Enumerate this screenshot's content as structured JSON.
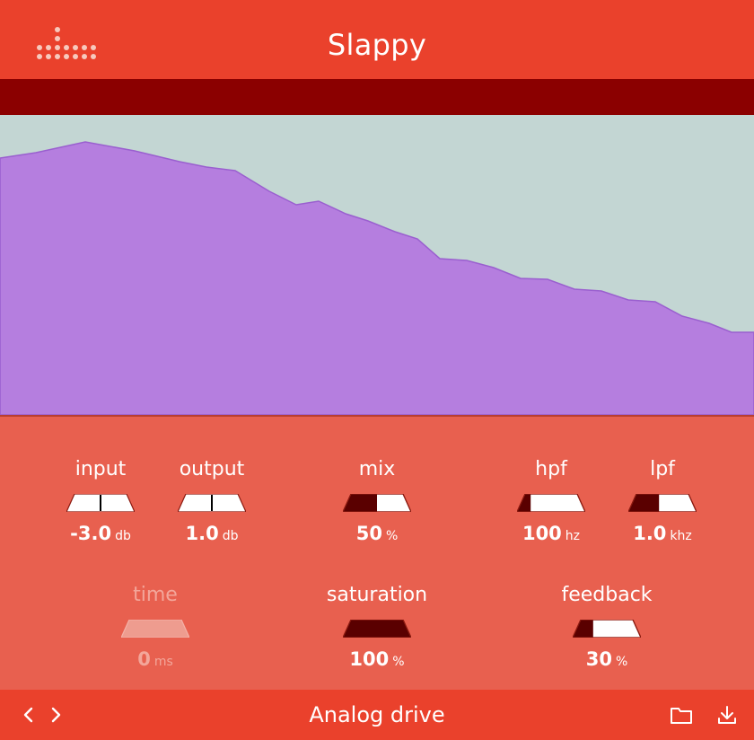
{
  "header": {
    "title": "Slappy",
    "logo_icon": "dots-logo-icon"
  },
  "colors": {
    "header": "#ea412c",
    "bar": "#8b0000",
    "panel": "#e8604f",
    "spectrum_fill": "#b57edf",
    "spectrum_bg": "#c3d6d3",
    "fader_fill": "#5a0000"
  },
  "controls": {
    "input": {
      "label": "input",
      "value": "-3.0",
      "unit": "db",
      "level": 0.5
    },
    "output": {
      "label": "output",
      "value": "1.0",
      "unit": "db",
      "level": 0.5
    },
    "mix": {
      "label": "mix",
      "value": "50",
      "unit": "%",
      "level": 0.5
    },
    "hpf": {
      "label": "hpf",
      "value": "100",
      "unit": "hz",
      "level": 0.2
    },
    "lpf": {
      "label": "lpf",
      "value": "1.0",
      "unit": "khz",
      "level": 0.45
    },
    "time": {
      "label": "time",
      "value": "0",
      "unit": "ms",
      "level": 0.0
    },
    "saturation": {
      "label": "saturation",
      "value": "100",
      "unit": "%",
      "level": 1.0
    },
    "feedback": {
      "label": "feedback",
      "value": "30",
      "unit": "%",
      "level": 0.3
    }
  },
  "footer": {
    "prev_icon": "chevron-left-icon",
    "next_icon": "chevron-right-icon",
    "preset_name": "Analog drive",
    "folder_icon": "folder-icon",
    "download_icon": "download-icon"
  }
}
